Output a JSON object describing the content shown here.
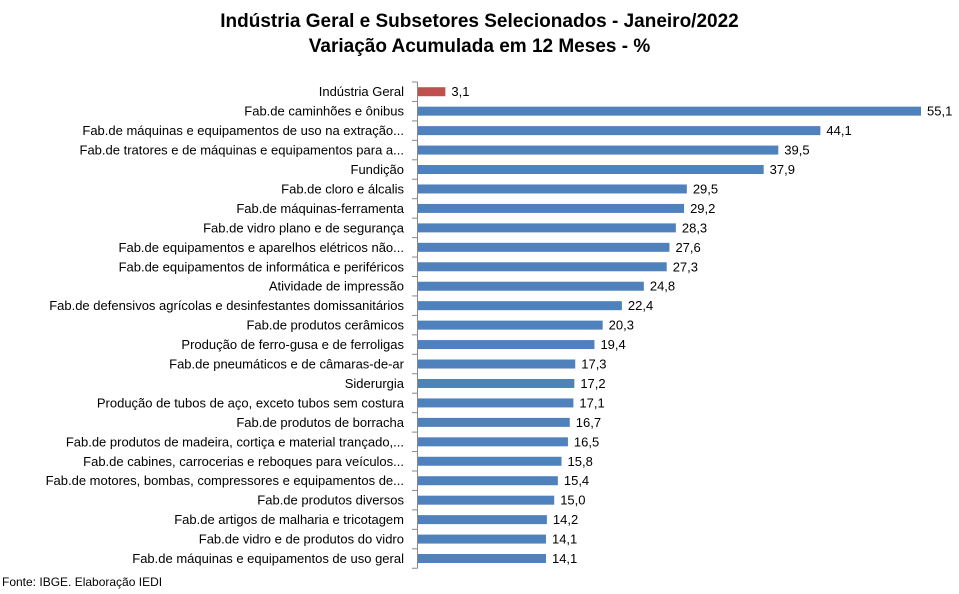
{
  "chart_data": {
    "type": "bar",
    "orientation": "horizontal",
    "title": [
      "Indústria Geral e Subsetores Selecionados - Janeiro/2022",
      "Variação Acumulada em 12 Meses - %"
    ],
    "categories": [
      "Indústria Geral",
      "Fab.de caminhões e ônibus",
      "Fab.de máquinas e equipamentos de uso na extração...",
      "Fab.de tratores e de máquinas e equipamentos para a...",
      "Fundição",
      "Fab.de cloro e álcalis",
      "Fab.de máquinas-ferramenta",
      "Fab.de vidro plano e de segurança",
      "Fab.de equipamentos e aparelhos elétricos não...",
      "Fab.de equipamentos de informática e periféricos",
      "Atividade de impressão",
      "Fab.de defensivos agrícolas e desinfestantes domissanitários",
      "Fab.de produtos cerâmicos",
      "Produção de ferro-gusa e de ferroligas",
      "Fab.de pneumáticos e de câmaras-de-ar",
      "Siderurgia",
      "Produção de tubos de aço, exceto tubos sem costura",
      "Fab.de produtos de borracha",
      "Fab.de produtos de madeira, cortiça e material trançado,...",
      "Fab.de cabines, carrocerias e reboques para veículos...",
      "Fab.de motores, bombas, compressores e equipamentos de...",
      "Fab.de produtos diversos",
      "Fab.de artigos de malharia e tricotagem",
      "Fab.de vidro e de produtos do vidro",
      "Fab.de máquinas e equipamentos de uso geral"
    ],
    "values": [
      3.1,
      55.1,
      44.1,
      39.5,
      37.9,
      29.5,
      29.2,
      28.3,
      27.6,
      27.3,
      24.8,
      22.4,
      20.3,
      19.4,
      17.3,
      17.2,
      17.1,
      16.7,
      16.5,
      15.8,
      15.4,
      15.0,
      14.2,
      14.1,
      14.1
    ],
    "value_labels": [
      "3,1",
      "55,1",
      "44,1",
      "39,5",
      "37,9",
      "29,5",
      "29,2",
      "28,3",
      "27,6",
      "27,3",
      "24,8",
      "22,4",
      "20,3",
      "19,4",
      "17,3",
      "17,2",
      "17,1",
      "16,7",
      "16,5",
      "15,8",
      "15,4",
      "15,0",
      "14,2",
      "14,1",
      "14,1"
    ],
    "highlight_index": 0,
    "colors": {
      "highlight": "#C0504D",
      "default": "#4F81BD",
      "axis": "#888888"
    },
    "xlim": [
      0,
      55.1
    ],
    "grid": false,
    "legend": "none"
  },
  "source": "Fonte: IBGE. Elaboração IEDI"
}
